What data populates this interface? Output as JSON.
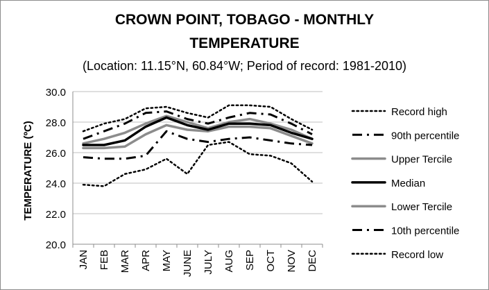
{
  "title_line1": "CROWN POINT, TOBAGO - MONTHLY",
  "title_line2": "TEMPERATURE",
  "subtitle": "(Location: 11.15°N, 60.84°W; Period of record: 1981-2010)",
  "chart_data": {
    "type": "line",
    "title": "CROWN POINT, TOBAGO - MONTHLY TEMPERATURE",
    "subtitle": "(Location: 11.15°N, 60.84°W; Period of record: 1981-2010)",
    "xlabel": "",
    "ylabel": "TEMPERATURE (ºC)",
    "ylim": [
      20,
      30
    ],
    "yticks": [
      "20.0",
      "22.0",
      "24.0",
      "26.0",
      "28.0",
      "30.0"
    ],
    "categories": [
      "JAN",
      "FEB",
      "MAR",
      "APR",
      "MAY",
      "JUNE",
      "JULY",
      "AUG",
      "SEP",
      "OCT",
      "NOV",
      "DEC"
    ],
    "grid": true,
    "legend_position": "right",
    "series": [
      {
        "name": "Record high",
        "color": "#000000",
        "style": "dotted",
        "values": [
          27.4,
          27.9,
          28.2,
          28.9,
          29.0,
          28.6,
          28.3,
          29.1,
          29.1,
          29.0,
          28.2,
          27.5
        ]
      },
      {
        "name": "90th percentile",
        "color": "#000000",
        "style": "dashdot",
        "values": [
          26.9,
          27.4,
          27.9,
          28.6,
          28.7,
          28.2,
          27.9,
          28.3,
          28.6,
          28.5,
          27.9,
          27.2
        ]
      },
      {
        "name": "Upper Tercile",
        "color": "#8c8c8c",
        "style": "solid",
        "values": [
          26.6,
          26.9,
          27.3,
          27.9,
          28.4,
          28.0,
          27.6,
          28.0,
          28.2,
          27.9,
          27.5,
          26.9
        ]
      },
      {
        "name": "Median",
        "color": "#000000",
        "style": "solid-thick",
        "values": [
          26.5,
          26.5,
          26.8,
          27.7,
          28.3,
          27.8,
          27.5,
          27.9,
          27.9,
          27.8,
          27.3,
          26.9
        ]
      },
      {
        "name": "Lower Tercile",
        "color": "#8c8c8c",
        "style": "solid",
        "values": [
          26.3,
          26.3,
          26.4,
          27.2,
          27.8,
          27.5,
          27.4,
          27.7,
          27.7,
          27.6,
          27.1,
          26.6
        ]
      },
      {
        "name": "10th percentile",
        "color": "#000000",
        "style": "dashdot",
        "values": [
          25.7,
          25.6,
          25.6,
          25.8,
          27.4,
          26.9,
          26.7,
          26.9,
          27.0,
          26.8,
          26.6,
          26.5
        ]
      },
      {
        "name": "Record low",
        "color": "#000000",
        "style": "dotted",
        "values": [
          23.9,
          23.8,
          24.6,
          24.9,
          25.6,
          24.6,
          26.5,
          26.7,
          25.9,
          25.8,
          25.3,
          24.1
        ]
      }
    ]
  }
}
